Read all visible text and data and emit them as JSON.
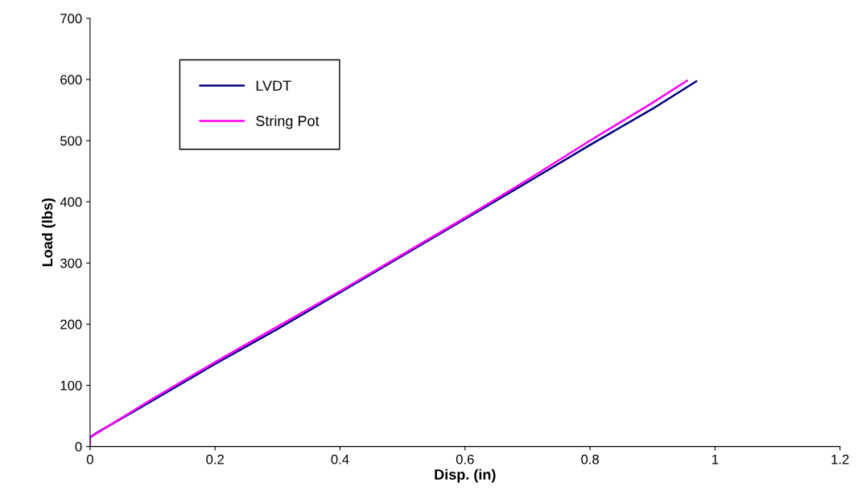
{
  "chart_data": {
    "type": "line",
    "xlabel": "Disp. (in)",
    "ylabel": "Load (lbs)",
    "xlim": [
      0,
      1.2
    ],
    "xticks": [
      0,
      0.2,
      0.4,
      0.6,
      0.8,
      1,
      1.2
    ],
    "ylim": [
      0,
      700
    ],
    "yticks": [
      0,
      100,
      200,
      300,
      400,
      500,
      600,
      700
    ],
    "grid": false,
    "legend": "top left",
    "marker": "none",
    "line_style": "solid",
    "series": [
      {
        "name": "LVDT",
        "color": "#000080",
        "x": [
          0,
          0.01,
          0.1,
          0.2,
          0.3,
          0.4,
          0.5,
          0.6,
          0.7,
          0.8,
          0.9,
          0.97
        ],
        "values": [
          15,
          22,
          75,
          135,
          192,
          252,
          312,
          372,
          432,
          493,
          552,
          597
        ]
      },
      {
        "name": "String Pot",
        "color": "#ff00ff",
        "x": [
          0,
          0,
          0.1,
          0.2,
          0.3,
          0.4,
          0.5,
          0.6,
          0.7,
          0.8,
          0.9,
          0.955
        ],
        "values": [
          0,
          15,
          78,
          138,
          196,
          254,
          314,
          374,
          436,
          500,
          562,
          598
        ]
      }
    ]
  }
}
